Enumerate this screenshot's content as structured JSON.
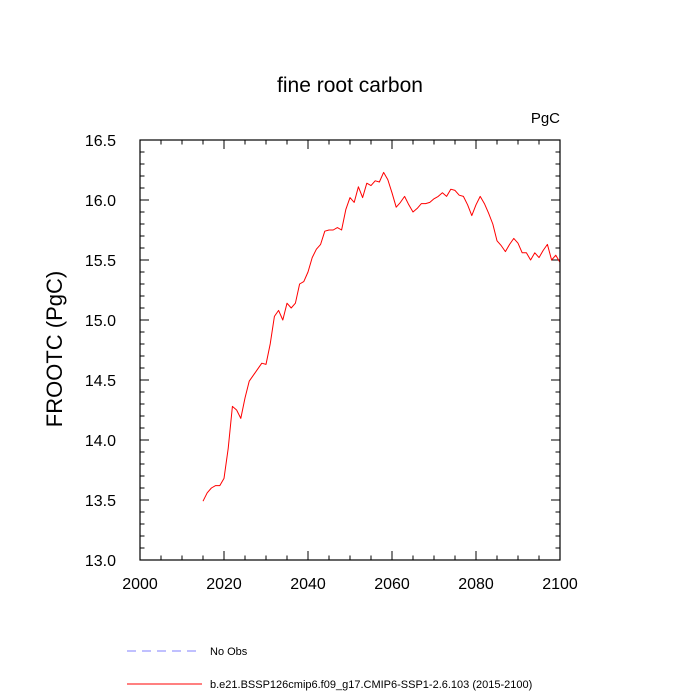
{
  "chart_data": {
    "type": "line",
    "title": "fine root carbon",
    "units_label": "PgC",
    "xlabel": "",
    "ylabel": "FROOTC  (PgC)",
    "xlim": [
      2000,
      2100
    ],
    "ylim": [
      13.0,
      16.5
    ],
    "x_ticks": [
      "2000",
      "2020",
      "2040",
      "2060",
      "2080",
      "2100"
    ],
    "y_ticks": [
      "13.0",
      "13.5",
      "14.0",
      "14.5",
      "15.0",
      "15.5",
      "16.0",
      "16.5"
    ],
    "series": [
      {
        "name": "b.e21.BSSP126cmip6.f09_g17.CMIP6-SSP1-2.6.103 (2015-2100)",
        "color": "#ff0000",
        "x": [
          2015,
          2016,
          2017,
          2018,
          2019,
          2020,
          2021,
          2022,
          2023,
          2024,
          2025,
          2026,
          2027,
          2028,
          2029,
          2030,
          2031,
          2032,
          2033,
          2034,
          2035,
          2036,
          2037,
          2038,
          2039,
          2040,
          2041,
          2042,
          2043,
          2044,
          2045,
          2046,
          2047,
          2048,
          2049,
          2050,
          2051,
          2052,
          2053,
          2054,
          2055,
          2056,
          2057,
          2058,
          2059,
          2060,
          2061,
          2062,
          2063,
          2064,
          2065,
          2066,
          2067,
          2068,
          2069,
          2070,
          2071,
          2072,
          2073,
          2074,
          2075,
          2076,
          2077,
          2078,
          2079,
          2080,
          2081,
          2082,
          2083,
          2084,
          2085,
          2086,
          2087,
          2088,
          2089,
          2090,
          2091,
          2092,
          2093,
          2094,
          2095,
          2096,
          2097,
          2098,
          2099,
          2100
        ],
        "y": [
          13.49,
          13.56,
          13.6,
          13.62,
          13.62,
          13.68,
          13.93,
          14.28,
          14.25,
          14.18,
          14.35,
          14.49,
          14.54,
          14.59,
          14.64,
          14.63,
          14.8,
          15.03,
          15.08,
          15.0,
          15.14,
          15.1,
          15.14,
          15.3,
          15.32,
          15.4,
          15.52,
          15.59,
          15.63,
          15.74,
          15.75,
          15.75,
          15.77,
          15.75,
          15.92,
          16.02,
          15.98,
          16.11,
          16.02,
          16.14,
          16.12,
          16.16,
          16.15,
          16.23,
          16.17,
          16.06,
          15.94,
          15.98,
          16.03,
          15.96,
          15.9,
          15.93,
          15.97,
          15.97,
          15.98,
          16.01,
          16.03,
          16.06,
          16.03,
          16.09,
          16.08,
          16.04,
          16.03,
          15.96,
          15.87,
          15.96,
          16.03,
          15.97,
          15.89,
          15.8,
          15.66,
          15.62,
          15.57,
          15.63,
          15.68,
          15.64,
          15.56,
          15.56,
          15.5,
          15.56,
          15.52,
          15.58,
          15.63,
          15.5,
          15.54,
          15.48
        ]
      }
    ],
    "legend": {
      "position": "bottom-left",
      "entries": [
        {
          "label": "No Obs",
          "color": "#8080ff",
          "style": "dashed"
        },
        {
          "label": "b.e21.BSSP126cmip6.f09_g17.CMIP6-SSP1-2.6.103 (2015-2100)",
          "color": "#ff0000",
          "style": "solid"
        }
      ]
    }
  }
}
